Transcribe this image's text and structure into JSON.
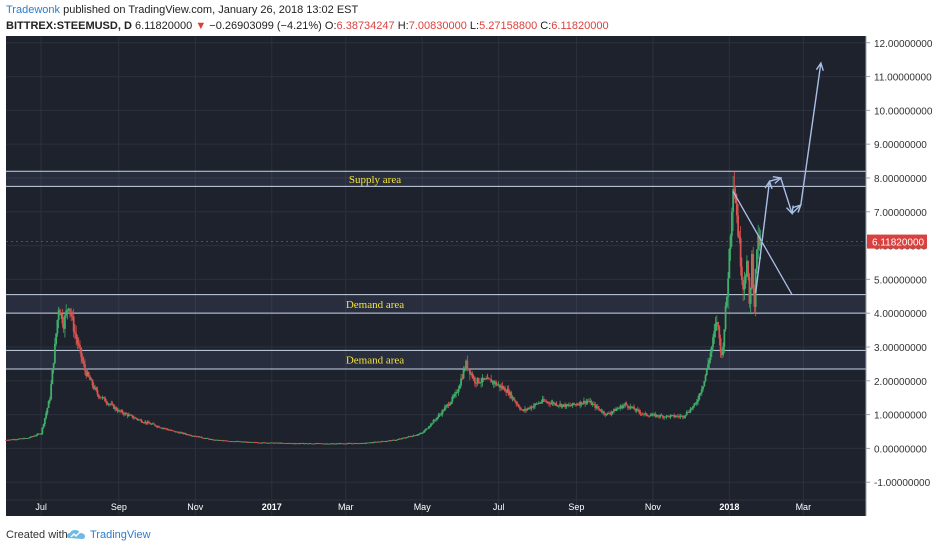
{
  "header": {
    "author": "Tradewonk",
    "published_text": "published on TradingView.com, January 26, 2018 13:02 EST",
    "symbol": "BITTREX:STEEMUSD, D",
    "last": "6.11820000",
    "change_arrow": "▼",
    "change": "−0.26903099 (−4.21%)",
    "o_label": "O:",
    "o_value": "6.38734247",
    "h_label": "H:",
    "h_value": "7.00830000",
    "l_label": "L:",
    "l_value": "5.27158800",
    "c_label": "C:",
    "c_value": "6.11820000"
  },
  "footer": {
    "created_with": "Created with",
    "brand": "TradingView"
  },
  "colors": {
    "background": "#1e222d",
    "up": "#3fae6a",
    "down": "#d9534f",
    "zone_line": "#c8d4e8",
    "annotation_text": "#f5e33a",
    "arrow": "#a9bfe6",
    "price_tag": "#d9413f"
  },
  "chart_data": {
    "type": "candlestick",
    "title": "",
    "ylim": [
      -2,
      12.2
    ],
    "y_ticks": [
      "12.00000000",
      "11.00000000",
      "10.00000000",
      "9.00000000",
      "8.00000000",
      "7.00000000",
      "6.00000000",
      "5.00000000",
      "4.00000000",
      "3.00000000",
      "2.00000000",
      "1.00000000",
      "0.00000000",
      "-1.00000000"
    ],
    "y_tick_values": [
      12,
      11,
      10,
      9,
      8,
      7,
      6,
      5,
      4,
      3,
      2,
      1,
      0,
      -1
    ],
    "x_ticks": [
      "Jul",
      "Sep",
      "Nov",
      "2017",
      "Mar",
      "May",
      "Jul",
      "Sep",
      "Nov",
      "2018",
      "Mar"
    ],
    "x_tick_dates": [
      "2016-07-01",
      "2016-09-01",
      "2016-11-01",
      "2017-01-01",
      "2017-03-01",
      "2017-05-01",
      "2017-07-01",
      "2017-09-01",
      "2017-11-01",
      "2018-01-01",
      "2018-03-01"
    ],
    "x_range": [
      "2016-06-03",
      "2018-04-20"
    ],
    "current_price_label": "6.11820000",
    "current_price": 6.1182,
    "price_path": [
      {
        "date": "2016-06-03",
        "close": 0.25
      },
      {
        "date": "2016-06-20",
        "close": 0.3
      },
      {
        "date": "2016-07-01",
        "close": 0.45
      },
      {
        "date": "2016-07-08",
        "close": 1.5
      },
      {
        "date": "2016-07-12",
        "close": 3.0
      },
      {
        "date": "2016-07-15",
        "close": 4.2
      },
      {
        "date": "2016-07-19",
        "close": 3.7
      },
      {
        "date": "2016-07-23",
        "close": 4.3
      },
      {
        "date": "2016-07-28",
        "close": 3.4
      },
      {
        "date": "2016-08-05",
        "close": 2.3
      },
      {
        "date": "2016-08-15",
        "close": 1.6
      },
      {
        "date": "2016-09-01",
        "close": 1.1
      },
      {
        "date": "2016-09-20",
        "close": 0.8
      },
      {
        "date": "2016-10-15",
        "close": 0.5
      },
      {
        "date": "2016-11-15",
        "close": 0.25
      },
      {
        "date": "2016-12-15",
        "close": 0.18
      },
      {
        "date": "2017-01-15",
        "close": 0.15
      },
      {
        "date": "2017-02-15",
        "close": 0.14
      },
      {
        "date": "2017-03-15",
        "close": 0.15
      },
      {
        "date": "2017-04-10",
        "close": 0.25
      },
      {
        "date": "2017-05-01",
        "close": 0.45
      },
      {
        "date": "2017-05-15",
        "close": 1.0
      },
      {
        "date": "2017-05-28",
        "close": 1.6
      },
      {
        "date": "2017-06-05",
        "close": 2.5
      },
      {
        "date": "2017-06-12",
        "close": 2.0
      },
      {
        "date": "2017-06-25",
        "close": 2.0
      },
      {
        "date": "2017-07-08",
        "close": 1.7
      },
      {
        "date": "2017-07-20",
        "close": 1.1
      },
      {
        "date": "2017-08-05",
        "close": 1.4
      },
      {
        "date": "2017-08-25",
        "close": 1.25
      },
      {
        "date": "2017-09-10",
        "close": 1.4
      },
      {
        "date": "2017-09-25",
        "close": 1.0
      },
      {
        "date": "2017-10-10",
        "close": 1.3
      },
      {
        "date": "2017-10-25",
        "close": 1.0
      },
      {
        "date": "2017-11-10",
        "close": 0.95
      },
      {
        "date": "2017-11-25",
        "close": 0.95
      },
      {
        "date": "2017-12-05",
        "close": 1.3
      },
      {
        "date": "2017-12-12",
        "close": 2.0
      },
      {
        "date": "2017-12-18",
        "close": 3.0
      },
      {
        "date": "2017-12-22",
        "close": 3.8
      },
      {
        "date": "2017-12-26",
        "close": 2.7
      },
      {
        "date": "2017-12-30",
        "close": 4.5
      },
      {
        "date": "2018-01-02",
        "close": 6.5
      },
      {
        "date": "2018-01-04",
        "close": 8.0
      },
      {
        "date": "2018-01-06",
        "close": 7.4
      },
      {
        "date": "2018-01-09",
        "close": 6.0
      },
      {
        "date": "2018-01-12",
        "close": 4.8
      },
      {
        "date": "2018-01-15",
        "close": 5.5
      },
      {
        "date": "2018-01-17",
        "close": 4.2
      },
      {
        "date": "2018-01-19",
        "close": 5.6
      },
      {
        "date": "2018-01-21",
        "close": 4.3
      },
      {
        "date": "2018-01-23",
        "close": 6.0
      },
      {
        "date": "2018-01-26",
        "close": 6.1182
      }
    ],
    "zones": [
      {
        "label": "Supply area",
        "low": 7.75,
        "high": 8.2
      },
      {
        "label": "Demand area",
        "low": 4.0,
        "high": 4.55
      },
      {
        "label": "Demand area",
        "low": 2.35,
        "high": 2.9
      }
    ],
    "trendline": {
      "from": {
        "date": "2018-01-04",
        "value": 7.6
      },
      "to": {
        "date": "2018-02-20",
        "value": 4.55
      }
    },
    "forecast_path": [
      {
        "date": "2018-01-22",
        "value": 4.6
      },
      {
        "date": "2018-02-02",
        "value": 7.9
      },
      {
        "date": "2018-02-11",
        "value": 8.0
      },
      {
        "date": "2018-02-20",
        "value": 6.95
      },
      {
        "date": "2018-02-27",
        "value": 7.2
      },
      {
        "date": "2018-03-15",
        "value": 11.4
      }
    ]
  }
}
